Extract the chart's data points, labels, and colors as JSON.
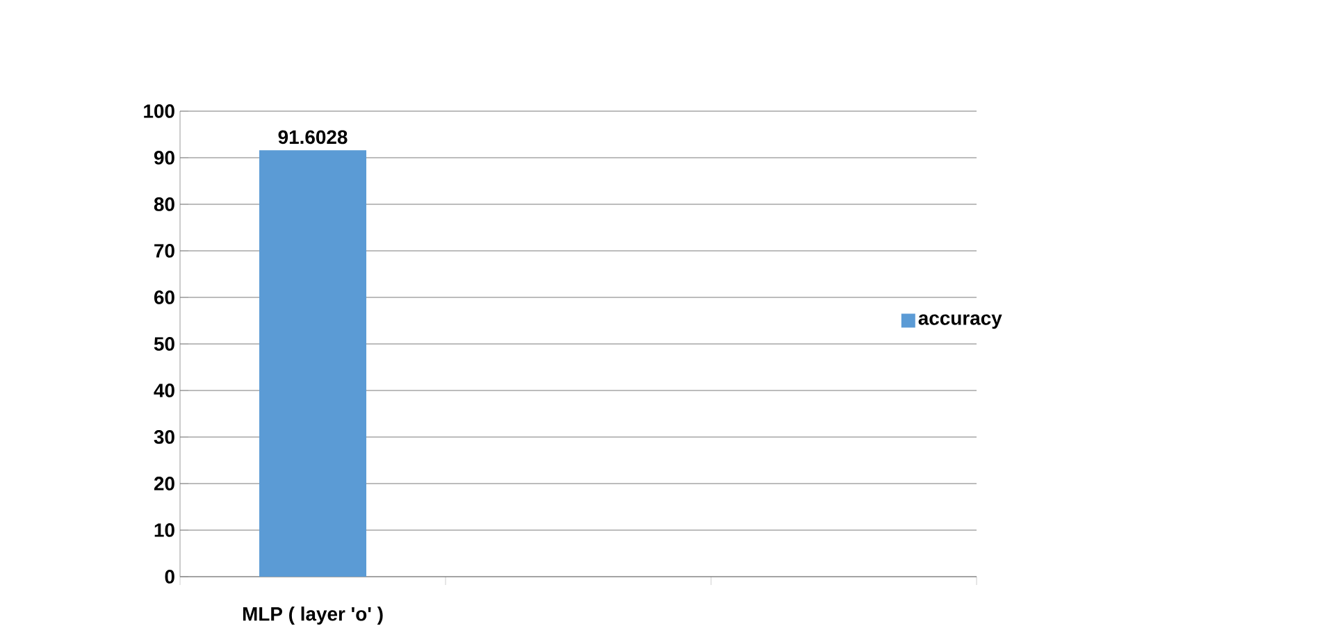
{
  "chart_data": {
    "type": "bar",
    "categories": [
      "MLP ( layer 'o' )",
      null,
      null
    ],
    "series": [
      {
        "name": "accuracy",
        "color": "#5b9bd5",
        "values": [
          91.6028,
          null,
          null
        ]
      }
    ],
    "ylim": [
      0,
      100
    ],
    "yticks": [
      0,
      10,
      20,
      30,
      40,
      50,
      60,
      70,
      80,
      90,
      100
    ],
    "grid": "y",
    "legend": "right",
    "data_labels": true
  }
}
